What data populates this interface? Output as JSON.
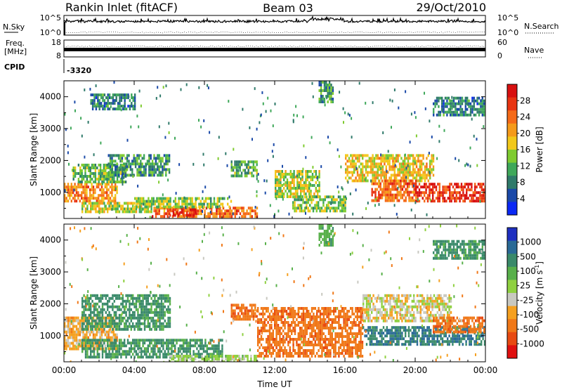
{
  "header": {
    "station": "Rankin Inlet (fitACF)",
    "beam": "Beam 03",
    "date": "29/Oct/2010"
  },
  "aux_panels": {
    "nsky": {
      "label": "N.Sky",
      "top_tick": "10^5",
      "bottom_tick": "10^0",
      "right_label": "N.Search",
      "right_top_tick": "10^5",
      "right_bottom_tick": "10^0"
    },
    "freq": {
      "label_line1": "Freq.",
      "label_line2": "[MHz]",
      "top_tick": "18",
      "bottom_tick": "8",
      "right_label": "Nave",
      "right_top_tick": "60",
      "right_bottom_tick": "0"
    },
    "cpid": {
      "label": "CPID",
      "value": "-3320"
    }
  },
  "chart_data": [
    {
      "type": "heatmap",
      "panel": "power",
      "ylabel": "Slant Range [km]",
      "xlabel": "",
      "ylim": [
        180,
        4500
      ],
      "yticks": [
        1000,
        2000,
        3000,
        4000
      ],
      "xlim_hours": [
        0,
        24
      ],
      "xtick_labels": [
        "00:00",
        "04:00",
        "08:00",
        "12:00",
        "16:00",
        "20:00",
        "00:00"
      ],
      "colorbar": {
        "label": "Power [dB]",
        "range": [
          0,
          32
        ],
        "ticks": [
          4,
          8,
          12,
          16,
          20,
          24,
          28
        ],
        "colors": [
          "#0a28f5",
          "#1a49a8",
          "#2f7a6a",
          "#3fa85a",
          "#7fcb30",
          "#f2c81a",
          "#f59a1a",
          "#f56a18",
          "#e83412",
          "#d81010"
        ]
      },
      "regions": [
        {
          "t0": 0.0,
          "t1": 3.0,
          "r0": 700,
          "r1": 1300,
          "value": 22
        },
        {
          "t0": 0.5,
          "t1": 3.5,
          "r0": 1300,
          "r1": 1900,
          "value": 12
        },
        {
          "t0": 2.5,
          "t1": 6.0,
          "r0": 1500,
          "r1": 2200,
          "value": 10
        },
        {
          "t0": 1.0,
          "t1": 5.0,
          "r0": 400,
          "r1": 700,
          "value": 16
        },
        {
          "t0": 5.0,
          "t1": 11.0,
          "r0": 250,
          "r1": 550,
          "value": 24
        },
        {
          "t0": 6.0,
          "t1": 7.5,
          "r0": 300,
          "r1": 500,
          "value": 30
        },
        {
          "t0": 4.0,
          "t1": 9.5,
          "r0": 550,
          "r1": 850,
          "value": 14
        },
        {
          "t0": 9.5,
          "t1": 11.0,
          "r0": 1500,
          "r1": 2000,
          "value": 12
        },
        {
          "t0": 12.0,
          "t1": 14.5,
          "r0": 900,
          "r1": 1700,
          "value": 16
        },
        {
          "t0": 13.0,
          "t1": 16.0,
          "r0": 400,
          "r1": 900,
          "value": 14
        },
        {
          "t0": 16.0,
          "t1": 21.0,
          "r0": 1400,
          "r1": 2200,
          "value": 18
        },
        {
          "t0": 17.5,
          "t1": 20.0,
          "r0": 700,
          "r1": 1400,
          "value": 24
        },
        {
          "t0": 20.0,
          "t1": 24.0,
          "r0": 700,
          "r1": 1300,
          "value": 28
        },
        {
          "t0": 14.5,
          "t1": 15.3,
          "r0": 3800,
          "r1": 4500,
          "value": 10
        },
        {
          "t0": 1.5,
          "t1": 4.0,
          "r0": 3600,
          "r1": 4100,
          "value": 8
        },
        {
          "t0": 21.0,
          "t1": 24.0,
          "r0": 3400,
          "r1": 4000,
          "value": 8
        }
      ]
    },
    {
      "type": "heatmap",
      "panel": "velocity",
      "ylabel": "Slant Range [km]",
      "xlabel": "Time UT",
      "ylim": [
        180,
        4500
      ],
      "yticks": [
        1000,
        2000,
        3000,
        4000
      ],
      "xlim_hours": [
        0,
        24
      ],
      "xtick_labels": [
        "00:00",
        "04:00",
        "08:00",
        "12:00",
        "16:00",
        "20:00",
        "00:00"
      ],
      "colorbar": {
        "label": "Velocity [m s^-1]",
        "tick_labels": [
          "1000",
          "500",
          "100",
          "25",
          "-25",
          "-100",
          "-500",
          "-1000"
        ],
        "colors": [
          "#1e2fc0",
          "#2a6a96",
          "#3a8a6a",
          "#58b04a",
          "#8fd040",
          "#c8c8c0",
          "#f5a020",
          "#f07818",
          "#e84a12",
          "#e01010"
        ]
      },
      "regions": [
        {
          "t0": 0.0,
          "t1": 3.0,
          "r0": 600,
          "r1": 1600,
          "value": -50
        },
        {
          "t0": 1.0,
          "t1": 6.0,
          "r0": 1200,
          "r1": 2300,
          "value": 300
        },
        {
          "t0": 1.0,
          "t1": 9.0,
          "r0": 350,
          "r1": 900,
          "value": 300
        },
        {
          "t0": 6.0,
          "t1": 11.0,
          "r0": 220,
          "r1": 400,
          "value": 50
        },
        {
          "t0": 9.5,
          "t1": 11.0,
          "r0": 1500,
          "r1": 2000,
          "value": -200
        },
        {
          "t0": 11.0,
          "t1": 17.0,
          "r0": 400,
          "r1": 1900,
          "value": -200
        },
        {
          "t0": 17.0,
          "t1": 22.0,
          "r0": 1500,
          "r1": 2300,
          "value": 0
        },
        {
          "t0": 17.0,
          "t1": 24.0,
          "r0": 700,
          "r1": 1300,
          "value": 500
        },
        {
          "t0": 21.0,
          "t1": 24.0,
          "r0": 1100,
          "r1": 1600,
          "value": -200
        },
        {
          "t0": 14.5,
          "t1": 15.3,
          "r0": 3800,
          "r1": 4500,
          "value": 200
        },
        {
          "t0": 21.0,
          "t1": 24.0,
          "r0": 3400,
          "r1": 4000,
          "value": 300
        }
      ]
    }
  ]
}
